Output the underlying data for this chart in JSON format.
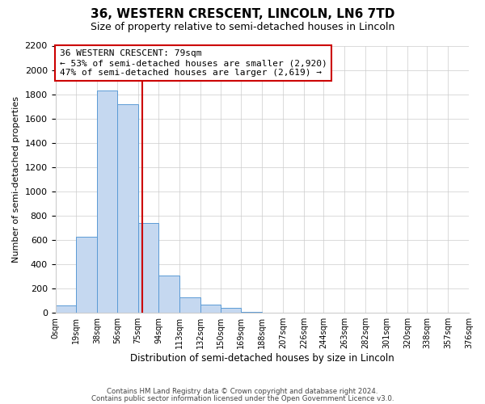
{
  "title": "36, WESTERN CRESCENT, LINCOLN, LN6 7TD",
  "subtitle": "Size of property relative to semi-detached houses in Lincoln",
  "xlabel": "Distribution of semi-detached houses by size in Lincoln",
  "ylabel": "Number of semi-detached properties",
  "property_size": 79,
  "bin_edges": [
    0,
    19,
    38,
    56,
    75,
    94,
    113,
    132,
    150,
    169,
    188,
    207,
    226,
    244,
    263,
    282,
    301,
    320,
    338,
    357,
    376
  ],
  "bin_counts": [
    60,
    625,
    1830,
    1720,
    740,
    305,
    130,
    65,
    40,
    5,
    0,
    0,
    0,
    0,
    0,
    0,
    0,
    0,
    0,
    0
  ],
  "bar_color": "#c5d8f0",
  "bar_edge_color": "#5b9bd5",
  "vline_color": "#cc0000",
  "annotation_line1": "36 WESTERN CRESCENT: 79sqm",
  "annotation_line2": "← 53% of semi-detached houses are smaller (2,920)",
  "annotation_line3": "47% of semi-detached houses are larger (2,619) →",
  "annotation_box_color": "#ffffff",
  "annotation_box_edge": "#cc0000",
  "ylim": [
    0,
    2200
  ],
  "yticks": [
    0,
    200,
    400,
    600,
    800,
    1000,
    1200,
    1400,
    1600,
    1800,
    2000,
    2200
  ],
  "xtick_labels": [
    "0sqm",
    "19sqm",
    "38sqm",
    "56sqm",
    "75sqm",
    "94sqm",
    "113sqm",
    "132sqm",
    "150sqm",
    "169sqm",
    "188sqm",
    "207sqm",
    "226sqm",
    "244sqm",
    "263sqm",
    "282sqm",
    "301sqm",
    "320sqm",
    "338sqm",
    "357sqm",
    "376sqm"
  ],
  "footer_line1": "Contains HM Land Registry data © Crown copyright and database right 2024.",
  "footer_line2": "Contains public sector information licensed under the Open Government Licence v3.0.",
  "title_fontsize": 11,
  "subtitle_fontsize": 9,
  "annotation_fontsize": 8,
  "grid_color": "#cccccc",
  "bg_color": "#ffffff"
}
